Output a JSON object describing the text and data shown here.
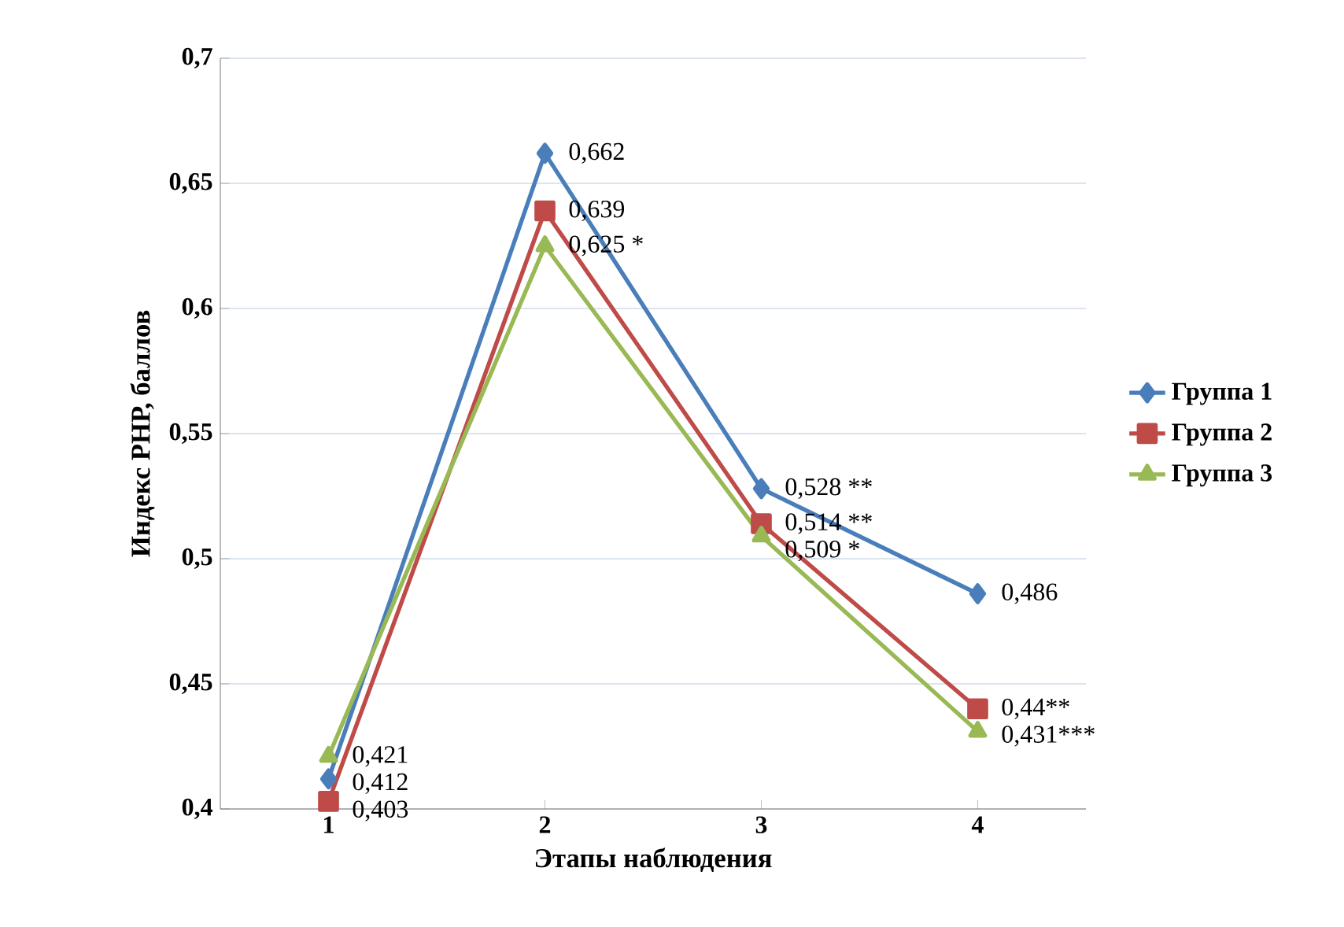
{
  "chart_data": {
    "type": "line",
    "xlabel": "Этапы наблюдения",
    "ylabel": "Индекс РНР, баллов",
    "categories": [
      "1",
      "2",
      "3",
      "4"
    ],
    "series": [
      {
        "name": "Группа 1",
        "color": "#4a7ebb",
        "marker": "diamond",
        "values": [
          0.412,
          0.662,
          0.528,
          0.486
        ],
        "value_labels": [
          "0,412",
          "0,662",
          "0,528 **",
          "0,486"
        ]
      },
      {
        "name": "Группа 2",
        "color": "#be4b48",
        "marker": "square",
        "values": [
          0.403,
          0.639,
          0.514,
          0.44
        ],
        "value_labels": [
          "0,403",
          "0,639",
          "0,514 **",
          "0,44**"
        ]
      },
      {
        "name": "Группа 3",
        "color": "#98b954",
        "marker": "triangle",
        "values": [
          0.421,
          0.625,
          0.509,
          0.431
        ],
        "value_labels": [
          "0,421",
          "0,625 *",
          "0,509 *",
          "0,431***"
        ]
      }
    ],
    "ylim": [
      0.4,
      0.7
    ],
    "yticks": [
      {
        "value": 0.4,
        "label": "0,4"
      },
      {
        "value": 0.45,
        "label": "0,45"
      },
      {
        "value": 0.5,
        "label": "0,5"
      },
      {
        "value": 0.55,
        "label": "0,55"
      },
      {
        "value": 0.6,
        "label": "0,6"
      },
      {
        "value": 0.65,
        "label": "0,65"
      },
      {
        "value": 0.7,
        "label": "0,7"
      }
    ],
    "grid": "y",
    "legend": "right",
    "line_style": "solid"
  }
}
